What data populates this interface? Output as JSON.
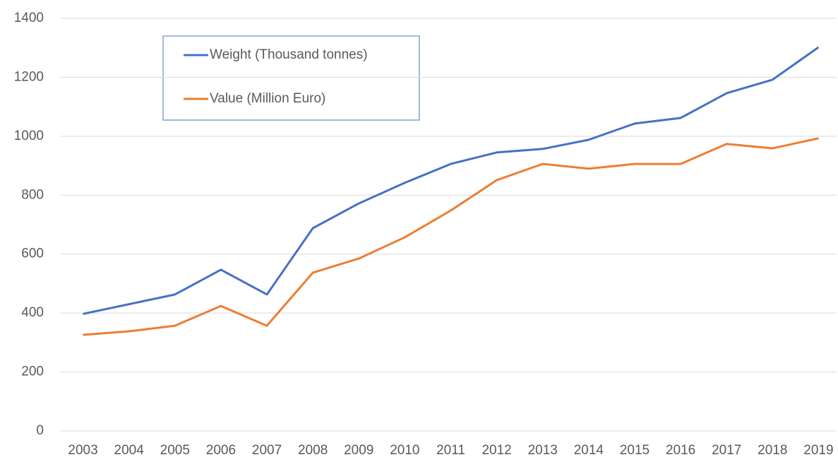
{
  "chart_data": {
    "type": "line",
    "categories": [
      "2003",
      "2004",
      "2005",
      "2006",
      "2007",
      "2008",
      "2009",
      "2010",
      "2011",
      "2012",
      "2013",
      "2014",
      "2015",
      "2016",
      "2017",
      "2018",
      "2019"
    ],
    "series": [
      {
        "name": "Weight (Thousand tonnes)",
        "color": "#4472c4",
        "values": [
          397,
          430,
          463,
          547,
          463,
          688,
          772,
          842,
          906,
          945,
          957,
          988,
          1043,
          1062,
          1146,
          1192,
          1302
        ]
      },
      {
        "name": "Value (Million Euro)",
        "color": "#ed7d31",
        "values": [
          326,
          338,
          357,
          424,
          357,
          537,
          585,
          657,
          748,
          851,
          906,
          890,
          906,
          906,
          974,
          959,
          993
        ]
      }
    ],
    "ylim": [
      0,
      1400
    ],
    "yticks": [
      0,
      200,
      400,
      600,
      800,
      1000,
      1200,
      1400
    ],
    "grid": true,
    "legend": "upper left"
  }
}
